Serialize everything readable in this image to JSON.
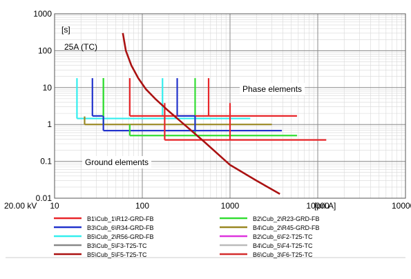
{
  "chart_data": {
    "type": "line",
    "title": "",
    "xscale": "log",
    "yscale": "log",
    "xlim": [
      10,
      100000
    ],
    "ylim": [
      0.01,
      1000
    ],
    "x_ticks": [
      "10",
      "100",
      "1000",
      "10000",
      "100000"
    ],
    "y_ticks": [
      "1000",
      "100",
      "10",
      "1",
      "0.1",
      "0.01"
    ],
    "ylabel": "[s]",
    "xlabel": "[pri.A]",
    "voltage_label": "20.00 kV",
    "grid": true,
    "annotations": {
      "curve_label": "25A (TC)",
      "phase_label": "Phase elements",
      "ground_label": "Ground elements"
    },
    "series": [
      {
        "name": "B1\\Cub_1\\R12-GRD-FB",
        "color": "#e8262a",
        "x": [
          72,
          72,
          72,
          5800
        ],
        "y": [
          18,
          1.7,
          1.7,
          1.7
        ]
      },
      {
        "name": "B2\\Cub_2\\R23-GRD-FB",
        "color": "#33dd33",
        "x": [
          36,
          36,
          36,
          72,
          72,
          5800
        ],
        "y": [
          18,
          1.0,
          1.0,
          1.0,
          0.5,
          0.5
        ]
      },
      {
        "name": "B3\\Cub_6\\R34-GRD-FB",
        "color": "#2233cc",
        "x": [
          27,
          27,
          27,
          36,
          36,
          3900
        ],
        "y": [
          18,
          1.7,
          1.7,
          1.7,
          0.68,
          0.68
        ]
      },
      {
        "name": "B4\\Cub_2\\R45-GRD-FB",
        "color": "#998822",
        "x": [
          22,
          22,
          22,
          3000
        ],
        "y": [
          1.65,
          1.65,
          1.0,
          1.0
        ]
      },
      {
        "name": "B5\\Cub_2\\R56-GRD-FB",
        "color": "#33eeee",
        "x": [
          18,
          18,
          18,
          1700
        ],
        "y": [
          18,
          1.45,
          1.45,
          1.45
        ]
      },
      {
        "name": "B2\\Cub_6\\F2-T25-TC",
        "color": "#dd33dd",
        "x": [
          170,
          170
        ],
        "y": [
          18,
          1.7
        ]
      },
      {
        "name": "B3\\Cub_5\\F3-T25-TC",
        "color": "#888888",
        "x": [],
        "y": []
      },
      {
        "name": "B4\\Cub_5\\F4-T25-TC",
        "color": "#bbbbbb",
        "x": [],
        "y": []
      },
      {
        "name": "B5\\Cub_5\\F5-T25-TC",
        "color": "#aa1111",
        "x": [
          60,
          65,
          75,
          90,
          110,
          140,
          200,
          300,
          500,
          1000,
          2000,
          3700
        ],
        "y": [
          300,
          100,
          40,
          18,
          9,
          5,
          2.3,
          1.0,
          0.35,
          0.08,
          0.03,
          0.013
        ]
      },
      {
        "name": "B6\\Cub_3\\F6-T25-TC",
        "color": "#d42c2c",
        "x": [
          170,
          170,
          170,
          250,
          250,
          250,
          400,
          400,
          400,
          570,
          570,
          570,
          1000,
          1000,
          1000,
          12500
        ],
        "y": [
          18,
          1.7,
          1.7,
          1.7,
          18,
          1.7,
          1.7,
          0.5,
          0.5,
          0.5,
          18,
          1.7,
          3.8,
          0.38,
          0.38,
          0.38
        ]
      }
    ],
    "phase_verticals": [
      {
        "x": 18,
        "y": [
          1.45,
          18
        ],
        "color": "#33eeee"
      },
      {
        "x": 27,
        "y": [
          1.7,
          18
        ],
        "color": "#2233cc"
      },
      {
        "x": 36,
        "y": [
          1.0,
          18
        ],
        "color": "#33dd33"
      },
      {
        "x": 72,
        "y": [
          1.7,
          18
        ],
        "color": "#e8262a"
      },
      {
        "x": 170,
        "y": [
          1.7,
          18
        ],
        "color": "#33eeee"
      },
      {
        "x": 250,
        "y": [
          1.7,
          18
        ],
        "color": "#2233cc"
      },
      {
        "x": 400,
        "y": [
          0.5,
          18
        ],
        "color": "#33dd33"
      },
      {
        "x": 570,
        "y": [
          1.7,
          18
        ],
        "color": "#e8262a"
      }
    ],
    "ground_steps": [
      {
        "color": "#33eeee",
        "x": [
          18,
          1700
        ],
        "y": 1.45
      },
      {
        "color": "#998822",
        "x": [
          22,
          3000
        ],
        "y": 1.0
      },
      {
        "color": "#2233cc",
        "x": [
          27,
          36
        ],
        "y": 1.7
      },
      {
        "color": "#2233cc",
        "x": [
          36,
          3900
        ],
        "y": 0.68
      },
      {
        "color": "#33dd33",
        "x": [
          72,
          5800
        ],
        "y": 0.5
      },
      {
        "color": "#e8262a",
        "x": [
          72,
          5800
        ],
        "y": 1.7
      },
      {
        "color": "#2233cc",
        "x": [
          250,
          400
        ],
        "y": 1.7
      },
      {
        "color": "#e8262a",
        "x": [
          180,
          12500
        ],
        "y": 0.38
      }
    ],
    "ground_risers": [
      {
        "color": "#33dd33",
        "x": 36,
        "y": [
          1.0,
          18
        ]
      },
      {
        "color": "#998822",
        "x": 22,
        "y": [
          1.0,
          1.65
        ]
      },
      {
        "color": "#2233cc",
        "x": 36,
        "y": [
          0.68,
          1.7
        ]
      },
      {
        "color": "#33dd33",
        "x": 72,
        "y": [
          0.5,
          1.0
        ]
      },
      {
        "color": "#2233cc",
        "x": 400,
        "y": [
          0.68,
          1.7
        ]
      },
      {
        "color": "#e8262a",
        "x": 180,
        "y": [
          0.38,
          3.8
        ]
      },
      {
        "color": "#e8262a",
        "x": 1000,
        "y": [
          0.38,
          3.8
        ]
      }
    ]
  },
  "legend": {
    "items": [
      {
        "label": "B1\\Cub_1\\R12-GRD-FB",
        "color": "#e8262a"
      },
      {
        "label": "B2\\Cub_2\\R23-GRD-FB",
        "color": "#33dd33"
      },
      {
        "label": "B3\\Cub_6\\R34-GRD-FB",
        "color": "#2233cc"
      },
      {
        "label": "B4\\Cub_2\\R45-GRD-FB",
        "color": "#998822"
      },
      {
        "label": "B5\\Cub_2\\R56-GRD-FB",
        "color": "#33eeee"
      },
      {
        "label": "B2\\Cub_6\\F2-T25-TC",
        "color": "#dd33dd"
      },
      {
        "label": "B3\\Cub_5\\F3-T25-TC",
        "color": "#888888"
      },
      {
        "label": "B4\\Cub_5\\F4-T25-TC",
        "color": "#bbbbbb"
      },
      {
        "label": "B5\\Cub_5\\F5-T25-TC",
        "color": "#aa1111"
      },
      {
        "label": "B6\\Cub_3\\F6-T25-TC",
        "color": "#d42c2c"
      }
    ]
  }
}
